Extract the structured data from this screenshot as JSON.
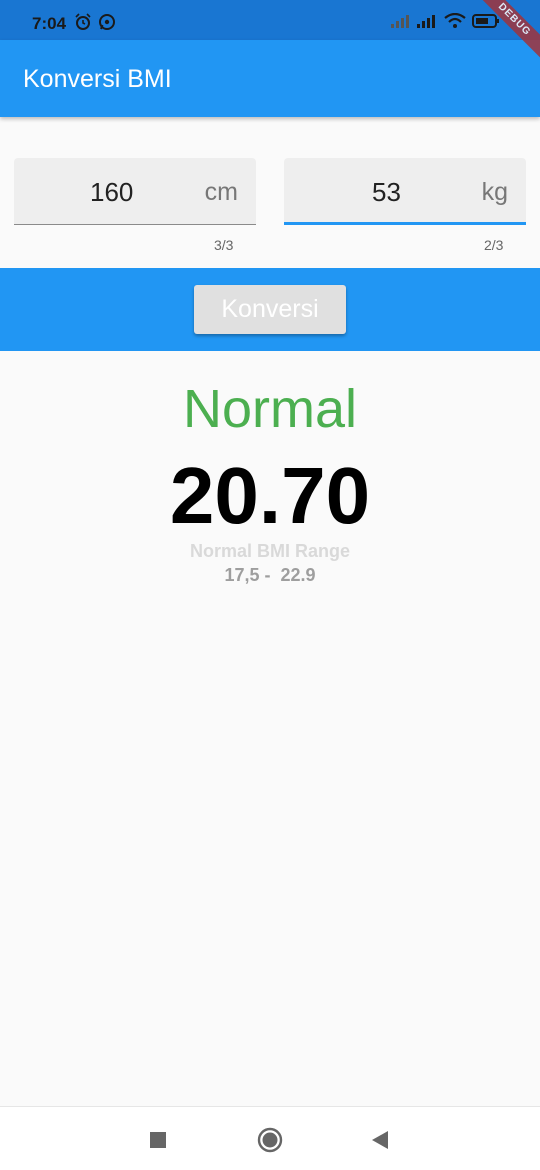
{
  "status_bar": {
    "time": "7:04",
    "left_icons": [
      "alarm-icon",
      "whatsapp-icon"
    ],
    "right_icons": [
      "signal-icon",
      "signal-icon",
      "wifi-icon",
      "battery-icon"
    ]
  },
  "debug_banner": "DEBUG",
  "app_bar": {
    "title": "Konversi BMI"
  },
  "height_field": {
    "value": "160",
    "unit": "cm",
    "counter": "3/3"
  },
  "weight_field": {
    "value": "53",
    "unit": "kg",
    "counter": "2/3"
  },
  "convert_button": {
    "label": "Konversi"
  },
  "result": {
    "category": "Normal",
    "bmi_value": "20.70",
    "range_label": "Normal BMI Range",
    "range_value": "17,5 -  22.9"
  },
  "colors": {
    "primary": "#2196f3",
    "status_bar": "#1976d2",
    "category": "#4caf50"
  },
  "nav_bar": {
    "icons": [
      "recent-apps-icon",
      "home-icon",
      "back-icon"
    ]
  }
}
